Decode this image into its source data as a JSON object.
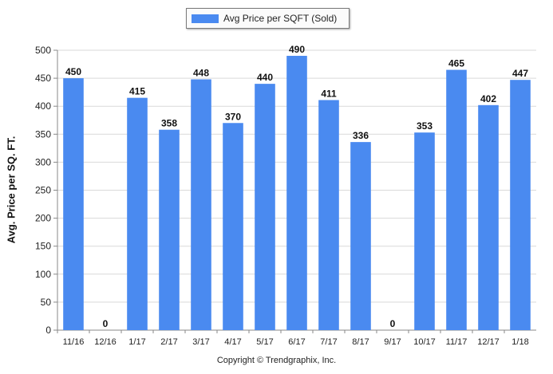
{
  "legend": {
    "label": "Avg Price per SQFT (Sold)",
    "color": "#4a8af0"
  },
  "axis": {
    "ylabel": "Avg. Price per SQ. FT."
  },
  "footer": {
    "copyright": "Copyright © Trendgraphix, Inc."
  },
  "chart_data": {
    "type": "bar",
    "categories": [
      "11/16",
      "12/16",
      "1/17",
      "2/17",
      "3/17",
      "4/17",
      "5/17",
      "6/17",
      "7/17",
      "8/17",
      "9/17",
      "10/17",
      "11/17",
      "12/17",
      "1/18"
    ],
    "series": [
      {
        "name": "Avg Price per SQFT (Sold)",
        "values": [
          450,
          0,
          415,
          358,
          448,
          370,
          440,
          490,
          411,
          336,
          0,
          353,
          465,
          402,
          447
        ]
      }
    ],
    "ylabel": "Avg. Price per SQ. FT.",
    "ylim": [
      0,
      500
    ],
    "yticks": [
      0,
      50,
      100,
      150,
      200,
      250,
      300,
      350,
      400,
      450,
      500
    ],
    "grid": true,
    "legend_position": "top-center",
    "bar_color": "#4a8af0"
  }
}
